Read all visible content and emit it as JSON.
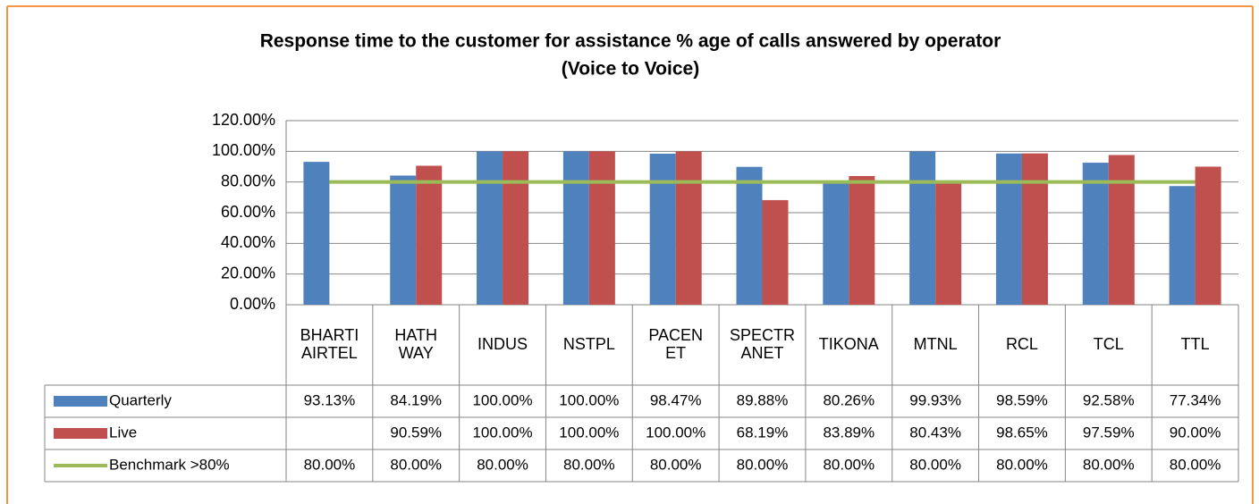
{
  "chart_data": {
    "type": "bar",
    "title": [
      "Response time to the customer for assistance % age of calls answered by operator",
      "(Voice to Voice)"
    ],
    "categories": [
      [
        "BHARTI",
        "AIRTEL"
      ],
      [
        "HATH",
        "WAY"
      ],
      [
        "INDUS"
      ],
      [
        "NSTPL"
      ],
      [
        "PACEN",
        "ET"
      ],
      [
        "SPECTR",
        "ANET"
      ],
      [
        "TIKONA"
      ],
      [
        "MTNL"
      ],
      [
        "RCL"
      ],
      [
        "TCL"
      ],
      [
        "TTL"
      ]
    ],
    "series": [
      {
        "name": "Quarterly",
        "type": "bar",
        "color": "#4f81bd",
        "values": [
          93.13,
          84.19,
          100,
          100,
          98.47,
          89.88,
          80.26,
          99.93,
          98.59,
          92.58,
          77.34
        ],
        "value_labels": [
          "93.13%",
          "84.19%",
          "100.00%",
          "100.00%",
          "98.47%",
          "89.88%",
          "80.26%",
          "99.93%",
          "98.59%",
          "92.58%",
          "77.34%"
        ]
      },
      {
        "name": "Live",
        "type": "bar",
        "color": "#c0504d",
        "values": [
          null,
          90.59,
          100,
          100,
          100,
          68.19,
          83.89,
          80.43,
          98.65,
          97.59,
          90
        ],
        "value_labels": [
          null,
          "90.59%",
          "100.00%",
          "100.00%",
          "100.00%",
          "68.19%",
          "83.89%",
          "80.43%",
          "98.65%",
          "97.59%",
          "90.00%"
        ]
      },
      {
        "name": "Benchmark >80%",
        "type": "line",
        "color": "#9bbb59",
        "values": [
          80,
          80,
          80,
          80,
          80,
          80,
          80,
          80,
          80,
          80,
          80
        ],
        "value_labels": [
          "80.00%",
          "80.00%",
          "80.00%",
          "80.00%",
          "80.00%",
          "80.00%",
          "80.00%",
          "80.00%",
          "80.00%",
          "80.00%",
          "80.00%"
        ]
      }
    ],
    "ylim": [
      0,
      120
    ],
    "yticks": [
      {
        "value": 0,
        "label": "0.00%"
      },
      {
        "value": 20,
        "label": "20.00%"
      },
      {
        "value": 40,
        "label": "40.00%"
      },
      {
        "value": 60,
        "label": "60.00%"
      },
      {
        "value": 80,
        "label": "80.00%"
      },
      {
        "value": 100,
        "label": "100.00%"
      },
      {
        "value": 120,
        "label": "120.00%"
      }
    ],
    "grid": true
  }
}
